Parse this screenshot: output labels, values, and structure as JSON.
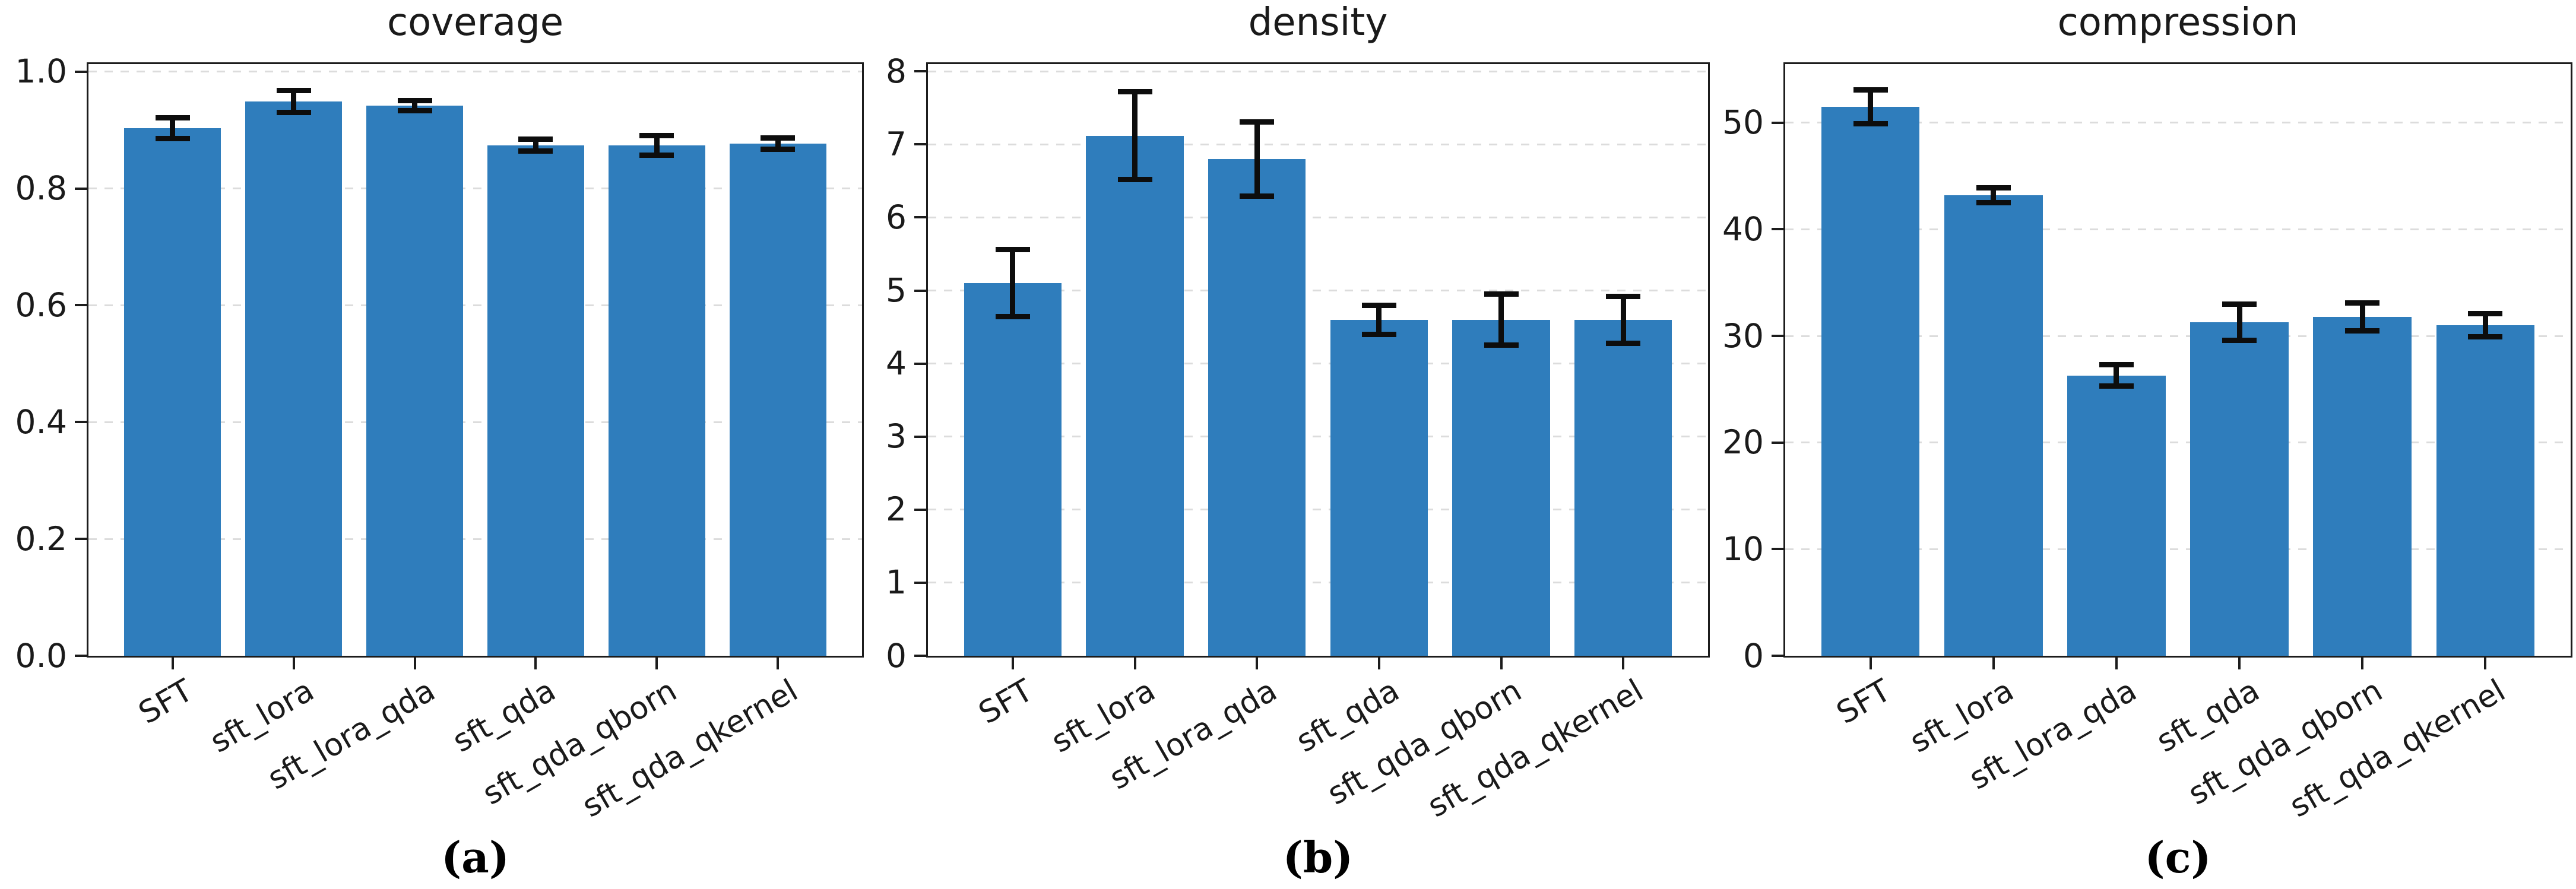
{
  "figure": {
    "background": "#ffffff"
  },
  "colors": {
    "bar": "#2f7dbc",
    "grid": "#dcdcdc",
    "axis": "#1c1c1c",
    "error_bar": "#0d0d0d",
    "text": "#1a1a1a"
  },
  "chart_data": [
    {
      "type": "bar",
      "title": "coverage",
      "panel_label": "(a)",
      "categories": [
        "SFT",
        "sft_lora",
        "sft_lora_qda",
        "sft_qda",
        "sft_qda_qborn",
        "sft_qda_qkernel"
      ],
      "values": [
        0.903,
        0.949,
        0.942,
        0.874,
        0.874,
        0.877
      ],
      "errors": [
        0.018,
        0.019,
        0.009,
        0.01,
        0.017,
        0.01
      ],
      "ylim": [
        0,
        1.013
      ],
      "ytick_labels": [
        "0.0",
        "0.2",
        "0.4",
        "0.6",
        "0.8",
        "1.0"
      ],
      "xlabel": "",
      "ylabel": "",
      "grid": "horizontal dashed",
      "legend": "none",
      "xtick_rotation_deg": 30
    },
    {
      "type": "bar",
      "title": "density",
      "panel_label": "(b)",
      "categories": [
        "SFT",
        "sft_lora",
        "sft_lora_qda",
        "sft_qda",
        "sft_qda_qborn",
        "sft_qda_qkernel"
      ],
      "values": [
        5.1,
        7.12,
        6.8,
        4.6,
        4.6,
        4.6
      ],
      "errors": [
        0.46,
        0.6,
        0.51,
        0.2,
        0.35,
        0.32
      ],
      "ylim": [
        0,
        8.1
      ],
      "ytick_labels": [
        "0",
        "1",
        "2",
        "3",
        "4",
        "5",
        "6",
        "7",
        "8"
      ],
      "xlabel": "",
      "ylabel": "",
      "grid": "horizontal dashed",
      "legend": "none",
      "xtick_rotation_deg": 30
    },
    {
      "type": "bar",
      "title": "compression",
      "panel_label": "(c)",
      "categories": [
        "SFT",
        "sft_lora",
        "sft_lora_qda",
        "sft_qda",
        "sft_qda_qborn",
        "sft_qda_qkernel"
      ],
      "values": [
        51.5,
        43.2,
        26.3,
        31.3,
        31.8,
        31.0
      ],
      "errors": [
        1.6,
        0.7,
        1.0,
        1.7,
        1.3,
        1.1
      ],
      "ylim": [
        0,
        55.5
      ],
      "ytick_labels": [
        "0",
        "10",
        "20",
        "30",
        "40",
        "50"
      ],
      "xlabel": "",
      "ylabel": "",
      "grid": "horizontal dashed",
      "legend": "none",
      "xtick_rotation_deg": 30
    }
  ]
}
